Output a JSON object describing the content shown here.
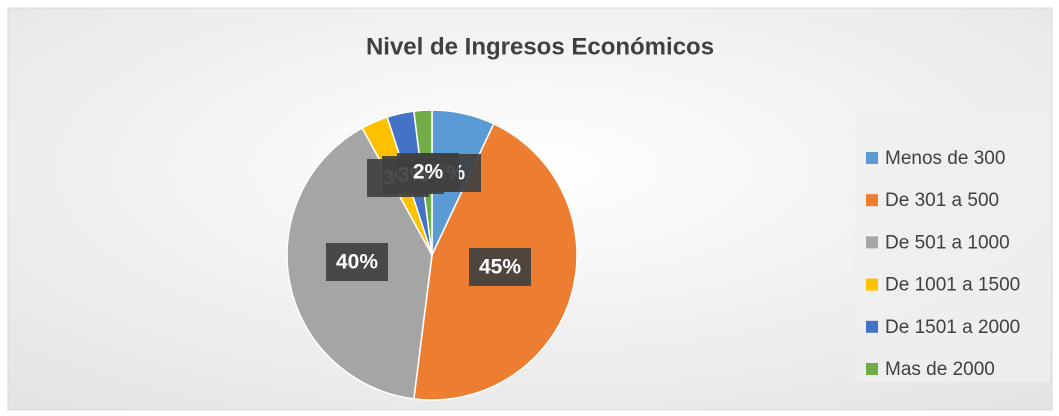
{
  "chart_data": {
    "type": "pie",
    "title": "Nivel de Ingresos Económicos",
    "categories": [
      "Menos de 300",
      "De 301 a 500",
      "De 501 a 1000",
      "De 1001 a 1500",
      "De 1501 a 2000",
      "Mas de 2000"
    ],
    "values": [
      7,
      45,
      40,
      3,
      3,
      2
    ],
    "value_labels": [
      "7%",
      "45%",
      "40%",
      "3%",
      "3%",
      "2%"
    ],
    "colors": [
      "#5b9bd5",
      "#ed7d31",
      "#a5a5a5",
      "#ffc000",
      "#4472c4",
      "#70ad47"
    ],
    "legend": "right"
  }
}
